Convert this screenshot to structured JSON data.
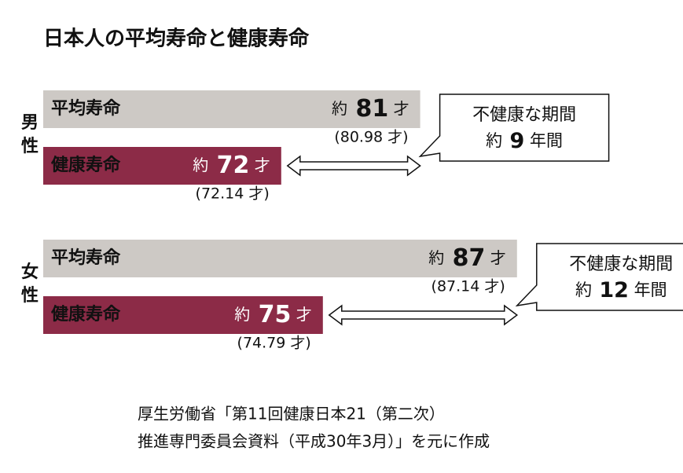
{
  "chart_data": {
    "type": "bar",
    "title": "日本人の平均寿命と健康寿命",
    "xlim": [
      57,
      88
    ],
    "groups": [
      {
        "name": "男性",
        "series": [
          {
            "name": "平均寿命",
            "color": "#cdc9c5",
            "value": 80.98,
            "value_label": "約 81 才",
            "value_detail": "(80.98 才)"
          },
          {
            "name": "健康寿命",
            "color": "#8c2b47",
            "value": 72.14,
            "value_label": "約 72 才",
            "value_detail": "(72.14 才)"
          }
        ],
        "gap_title": "不健康な期間",
        "gap_label": "約 9 年間"
      },
      {
        "name": "女性",
        "series": [
          {
            "name": "平均寿命",
            "color": "#cdc9c5",
            "value": 87.14,
            "value_label": "約 87 才",
            "value_detail": "(87.14 才)"
          },
          {
            "name": "健康寿命",
            "color": "#8c2b47",
            "value": 74.79,
            "value_label": "約 75 才",
            "value_detail": "(74.79 才)"
          }
        ],
        "gap_title": "不健康な期間",
        "gap_label": "約 12 年間"
      }
    ],
    "source": [
      "厚生労働省「第11回健康日本21（第二次）",
      "推進専門委員会資料（平成30年3月）」を元に作成"
    ]
  }
}
